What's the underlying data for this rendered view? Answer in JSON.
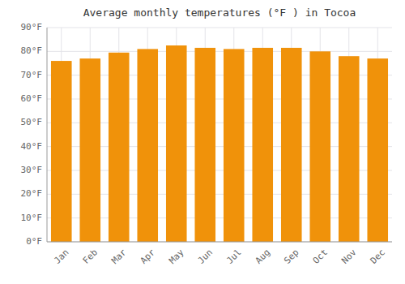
{
  "chart_data": {
    "type": "bar",
    "title": "Average monthly temperatures (°F ) in Tocoa",
    "categories": [
      "Jan",
      "Feb",
      "Mar",
      "Apr",
      "May",
      "Jun",
      "Jul",
      "Aug",
      "Sep",
      "Oct",
      "Nov",
      "Dec"
    ],
    "values": [
      76,
      77,
      79.5,
      81,
      82.5,
      81.5,
      81,
      81.5,
      81.5,
      80,
      78,
      77
    ],
    "color": "#F0920A",
    "ylim": [
      0,
      90
    ],
    "yticks": [
      {
        "value": 0,
        "label": "0°F"
      },
      {
        "value": 10,
        "label": "10°F"
      },
      {
        "value": 20,
        "label": "20°F"
      },
      {
        "value": 30,
        "label": "30°F"
      },
      {
        "value": 40,
        "label": "40°F"
      },
      {
        "value": 50,
        "label": "50°F"
      },
      {
        "value": 60,
        "label": "60°F"
      },
      {
        "value": 70,
        "label": "70°F"
      },
      {
        "value": 80,
        "label": "80°F"
      },
      {
        "value": 90,
        "label": "90°F"
      }
    ],
    "grid": true
  }
}
